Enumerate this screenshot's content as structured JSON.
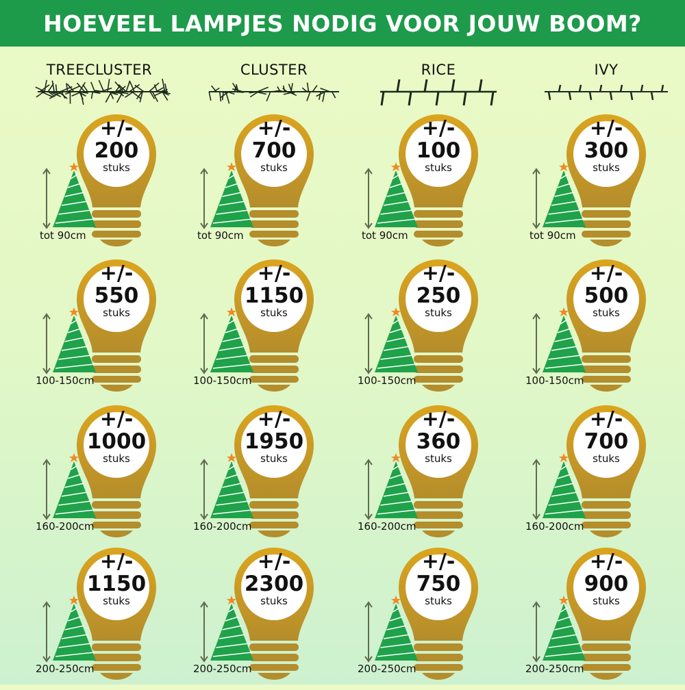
{
  "title": "HOEVEEL LAMPJES NODIG VOOR  JOUW BOOM?",
  "colors": {
    "header": "#1e9a4b",
    "bulb": "#c9991f",
    "tree": "#1fa24a",
    "star": "#f08a24"
  },
  "unit": "stuks",
  "prefix": "+/-",
  "columns": [
    {
      "name": "TREECLUSTER",
      "icon": "treecluster-strand-icon",
      "values": [
        "200",
        "550",
        "1000",
        "1150"
      ]
    },
    {
      "name": "CLUSTER",
      "icon": "cluster-strand-icon",
      "values": [
        "700",
        "1150",
        "1950",
        "2300"
      ]
    },
    {
      "name": "RICE",
      "icon": "rice-strand-icon",
      "values": [
        "100",
        "250",
        "360",
        "750"
      ]
    },
    {
      "name": "IVY",
      "icon": "ivy-strand-icon",
      "values": [
        "300",
        "500",
        "700",
        "900"
      ]
    }
  ],
  "sizes": [
    "tot 90cm",
    "100-150cm",
    "160-200cm",
    "200-250cm"
  ]
}
